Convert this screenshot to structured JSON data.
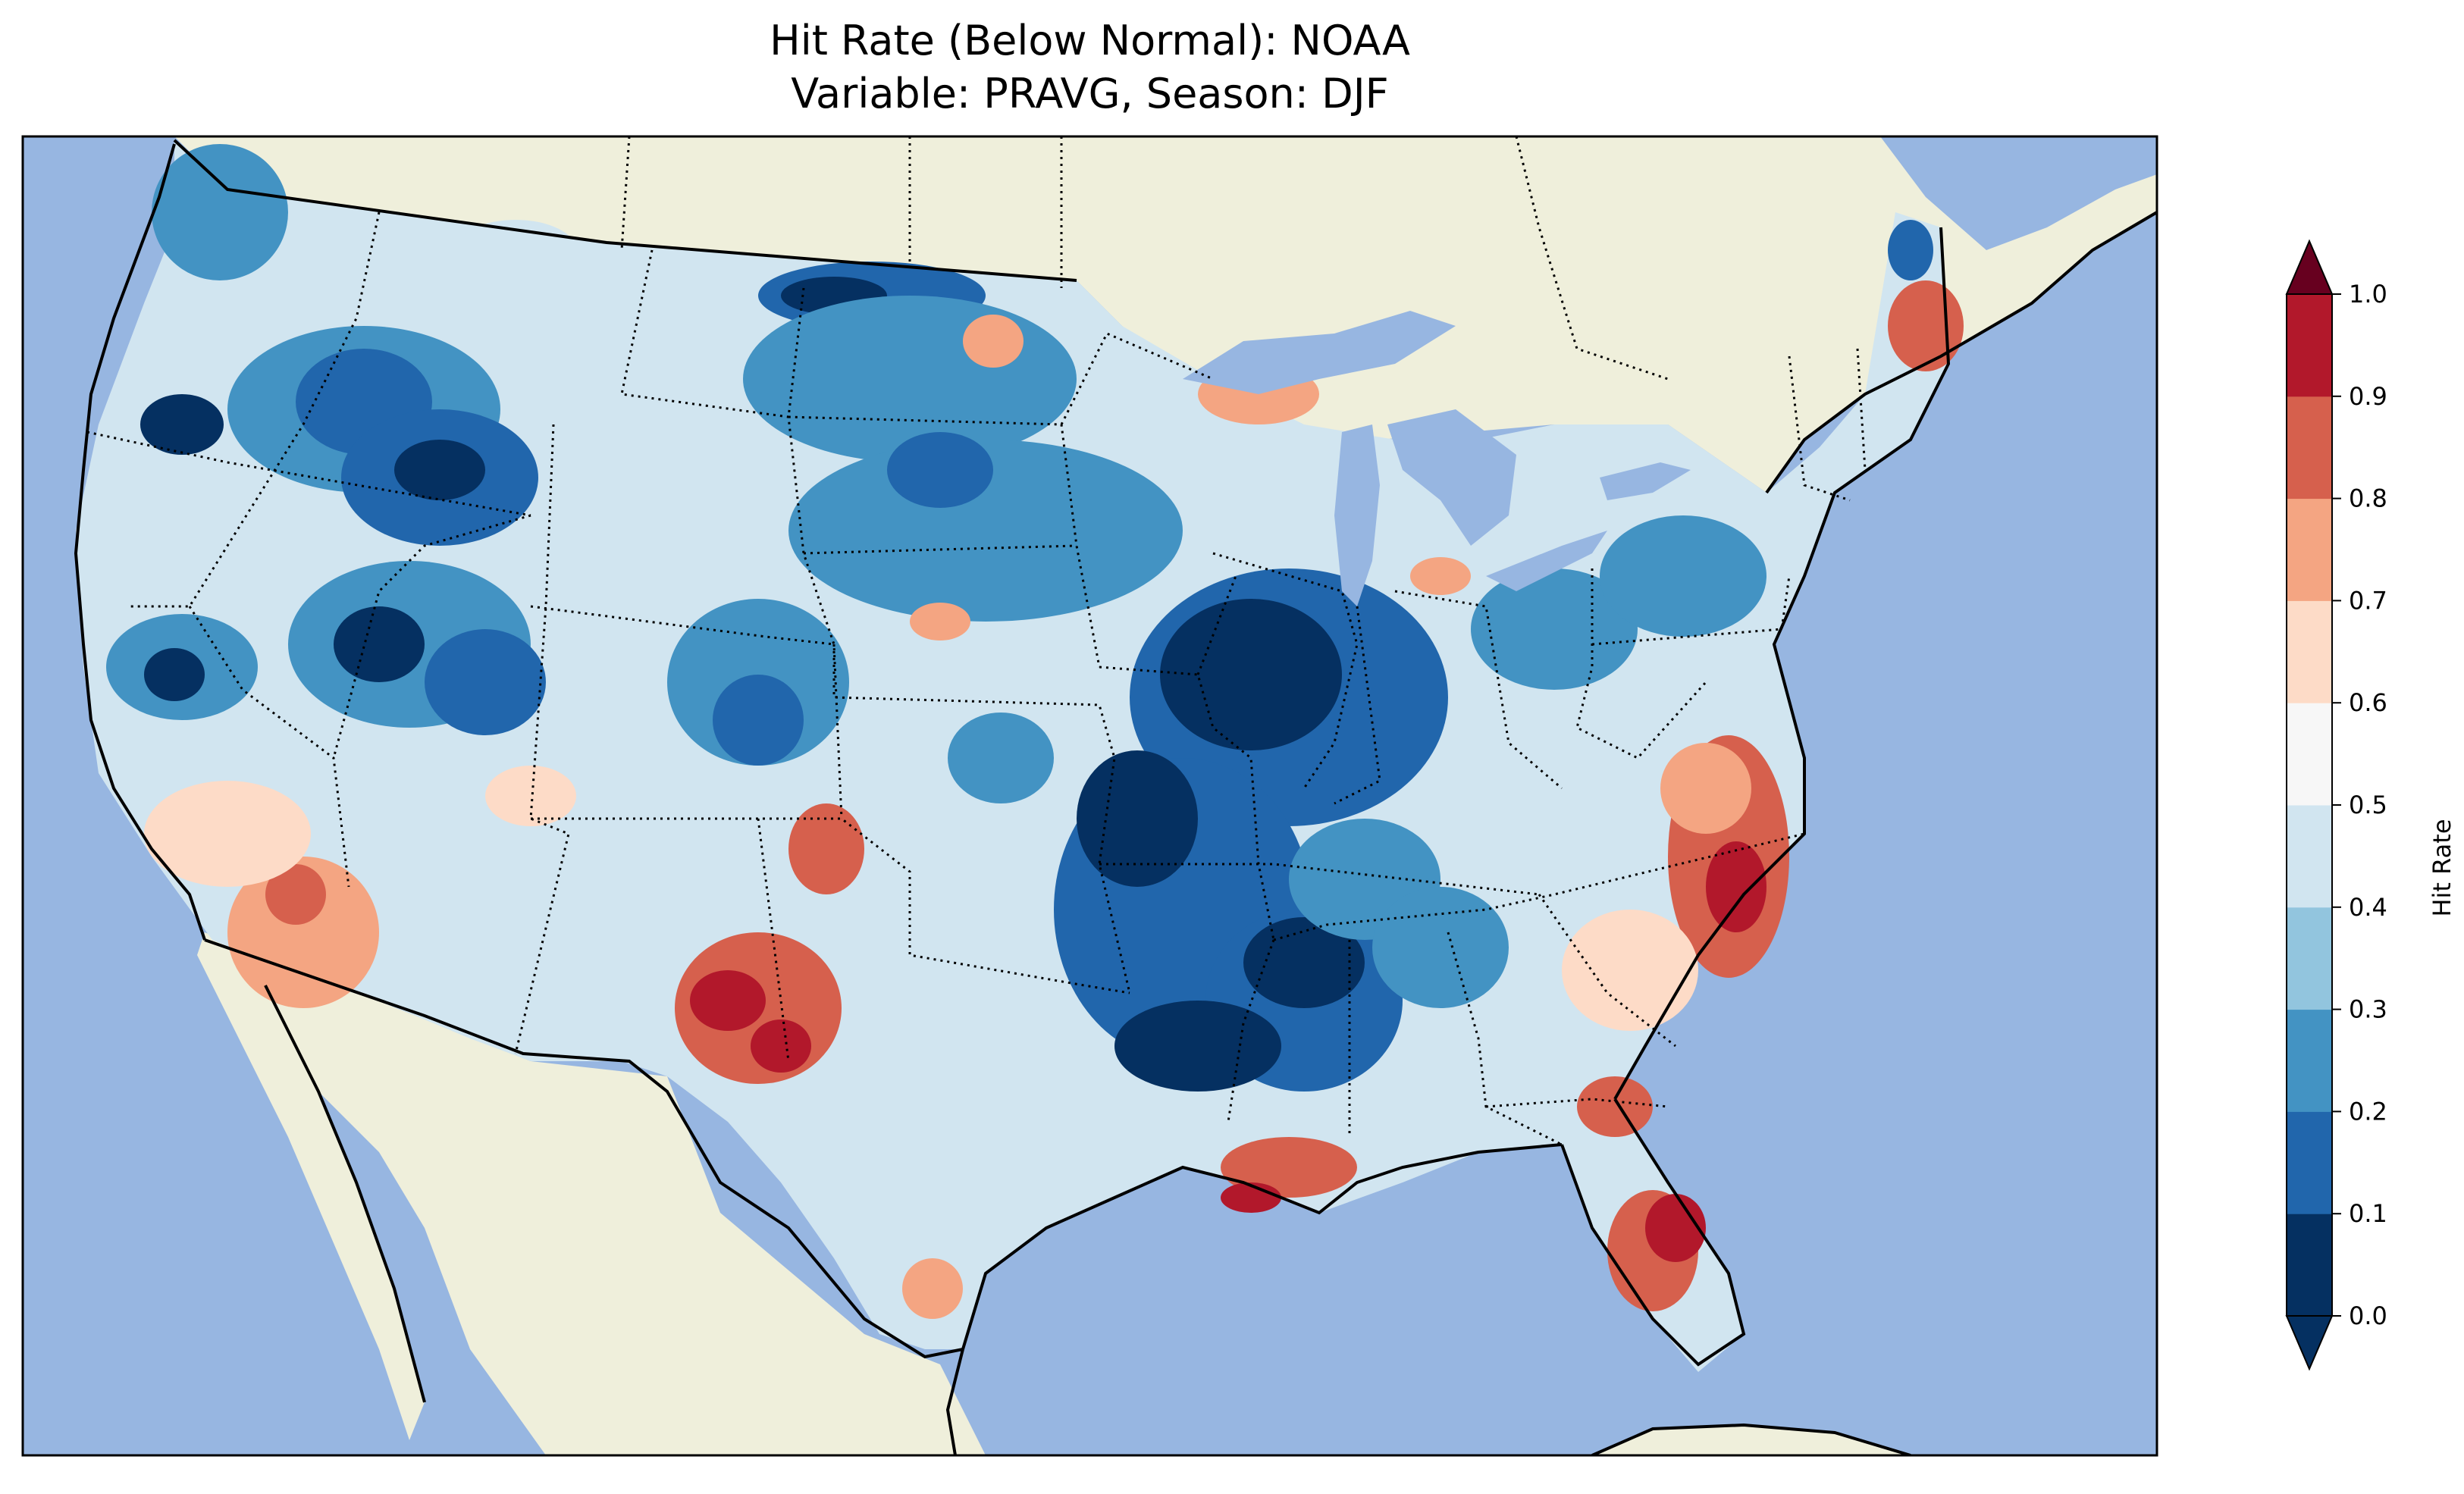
{
  "title": {
    "line1": "Hit Rate (Below Normal): NOAA",
    "line2": "Variable: PRAVG, Season: DJF"
  },
  "colorbar": {
    "label": "Hit Rate",
    "ticks": [
      "0.0",
      "0.1",
      "0.2",
      "0.3",
      "0.4",
      "0.5",
      "0.6",
      "0.7",
      "0.8",
      "0.9",
      "1.0"
    ],
    "colors": [
      "#053061",
      "#2166ac",
      "#4393c3",
      "#92c5de",
      "#d1e5f0",
      "#f7f7f7",
      "#fddbc7",
      "#f4a582",
      "#d6604d",
      "#b2182b",
      "#67001f"
    ],
    "extend": "both"
  },
  "map": {
    "ocean_color": "#97b6e1",
    "land_color": "#efefdb",
    "lake_color": "#97b6e1",
    "border_style": "dotted"
  }
}
